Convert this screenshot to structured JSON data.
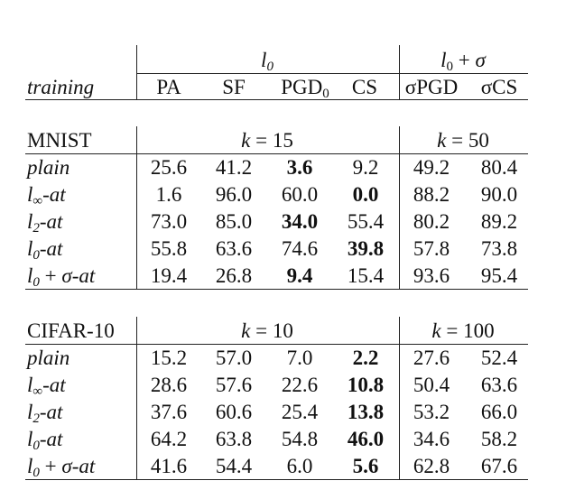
{
  "header": {
    "group_l0": "l0",
    "group_l0_sigma": "l0 + σ",
    "training_label": "training",
    "cols": [
      "PA",
      "SF",
      "PGD0",
      "CS",
      "σPGD",
      "σCS"
    ]
  },
  "sections": [
    {
      "name": "MNIST",
      "k_left": "k = 15",
      "k_right": "k = 50",
      "rows": [
        {
          "label": "plain",
          "values": [
            "25.6",
            "41.2",
            "3.6",
            "9.2",
            "49.2",
            "80.4"
          ],
          "bold": [
            2
          ]
        },
        {
          "label": "l∞-at",
          "values": [
            "1.6",
            "96.0",
            "60.0",
            "0.0",
            "88.2",
            "90.0"
          ],
          "bold": [
            3
          ]
        },
        {
          "label": "l2-at",
          "values": [
            "73.0",
            "85.0",
            "34.0",
            "55.4",
            "80.2",
            "89.2"
          ],
          "bold": [
            2
          ]
        },
        {
          "label": "l0-at",
          "values": [
            "55.8",
            "63.6",
            "74.6",
            "39.8",
            "57.8",
            "73.8"
          ],
          "bold": [
            3
          ]
        },
        {
          "label": "l0 + σ-at",
          "values": [
            "19.4",
            "26.8",
            "9.4",
            "15.4",
            "93.6",
            "95.4"
          ],
          "bold": [
            2
          ]
        }
      ]
    },
    {
      "name": "CIFAR-10",
      "k_left": "k = 10",
      "k_right": "k = 100",
      "rows": [
        {
          "label": "plain",
          "values": [
            "15.2",
            "57.0",
            "7.0",
            "2.2",
            "27.6",
            "52.4"
          ],
          "bold": [
            3
          ]
        },
        {
          "label": "l∞-at",
          "values": [
            "28.6",
            "57.6",
            "22.6",
            "10.8",
            "50.4",
            "63.6"
          ],
          "bold": [
            3
          ]
        },
        {
          "label": "l2-at",
          "values": [
            "37.6",
            "60.6",
            "25.4",
            "13.8",
            "53.2",
            "66.0"
          ],
          "bold": [
            3
          ]
        },
        {
          "label": "l0-at",
          "values": [
            "64.2",
            "63.8",
            "54.8",
            "46.0",
            "34.6",
            "58.2"
          ],
          "bold": [
            3
          ]
        },
        {
          "label": "l0 + σ-at",
          "values": [
            "41.6",
            "54.4",
            "6.0",
            "5.6",
            "62.8",
            "67.6"
          ],
          "bold": [
            3
          ]
        }
      ]
    }
  ]
}
